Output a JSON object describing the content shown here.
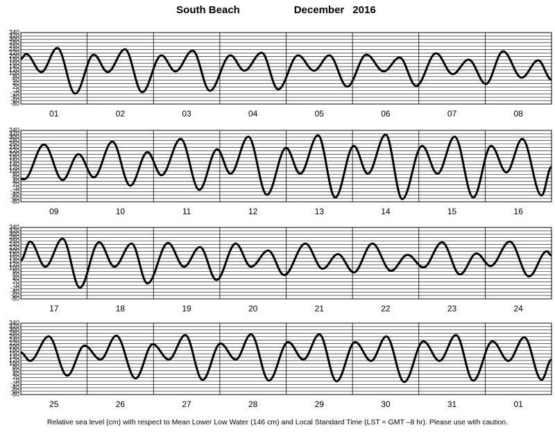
{
  "header": {
    "location": "South Beach",
    "month": "December",
    "year": "2016"
  },
  "chart_data": [
    {
      "type": "line",
      "categories": [
        "01",
        "02",
        "03",
        "04",
        "05",
        "06",
        "07",
        "08"
      ],
      "x": [
        0,
        0.08,
        0.31,
        0.55,
        0.82,
        1.1,
        1.31,
        1.57,
        1.83,
        2.12,
        2.33,
        2.59,
        2.85,
        3.16,
        3.37,
        3.63,
        3.88,
        4.18,
        4.42,
        4.65,
        4.92,
        5.21,
        5.47,
        5.71,
        5.96,
        6.26,
        6.51,
        6.75,
        7.01,
        7.27,
        7.55,
        7.8,
        8
      ],
      "values": [
        185,
        214,
        108,
        250,
        -19,
        210,
        108,
        242,
        -11,
        206,
        112,
        234,
        -2,
        206,
        116,
        222,
        6,
        206,
        116,
        206,
        22,
        210,
        112,
        193,
        26,
        218,
        96,
        181,
        38,
        230,
        75,
        177,
        63
      ],
      "xlim": [
        0,
        8
      ],
      "ylim": [
        -80,
        340
      ],
      "yticks": [
        340,
        320,
        300,
        280,
        260,
        240,
        220,
        200,
        180,
        160,
        140,
        120,
        100,
        80,
        60,
        40,
        20,
        0,
        -20,
        -40,
        -60,
        -80
      ],
      "color": "#000000",
      "grid": true
    },
    {
      "type": "line",
      "categories": [
        "09",
        "10",
        "11",
        "12",
        "13",
        "14",
        "15",
        "16"
      ],
      "x": [
        0,
        0.05,
        0.35,
        0.63,
        0.87,
        1.1,
        1.38,
        1.65,
        1.91,
        2.12,
        2.41,
        2.69,
        2.96,
        3.16,
        3.43,
        3.71,
        4.0,
        4.21,
        4.48,
        4.74,
        5.02,
        5.23,
        5.5,
        5.75,
        6.05,
        6.28,
        6.54,
        6.82,
        7.09,
        7.32,
        7.56,
        7.85,
        8
      ],
      "values": [
        56,
        52,
        257,
        48,
        200,
        64,
        274,
        15,
        212,
        76,
        290,
        -10,
        229,
        85,
        303,
        -39,
        237,
        85,
        311,
        -55,
        249,
        85,
        315,
        -64,
        249,
        85,
        303,
        -55,
        249,
        93,
        290,
        -43,
        126
      ],
      "xlim": [
        0,
        8
      ],
      "ylim": [
        -80,
        340
      ],
      "yticks": [
        340,
        320,
        300,
        280,
        260,
        240,
        220,
        200,
        180,
        160,
        140,
        120,
        100,
        80,
        60,
        40,
        20,
        0,
        -20,
        -40,
        -60,
        -80
      ],
      "color": "#000000",
      "grid": true
    },
    {
      "type": "line",
      "categories": [
        "17",
        "18",
        "19",
        "20",
        "21",
        "22",
        "23",
        "24"
      ],
      "x": [
        0,
        0.14,
        0.37,
        0.63,
        0.89,
        1.18,
        1.41,
        1.67,
        1.91,
        2.22,
        2.46,
        2.7,
        2.95,
        3.24,
        3.47,
        3.73,
        3.97,
        4.29,
        4.55,
        4.78,
        5.02,
        5.3,
        5.58,
        5.83,
        6.07,
        6.35,
        6.62,
        6.87,
        7.08,
        7.37,
        7.66,
        7.93,
        8
      ],
      "values": [
        146,
        257,
        109,
        274,
        -14,
        253,
        109,
        245,
        11,
        249,
        109,
        225,
        31,
        245,
        109,
        204,
        60,
        245,
        97,
        183,
        76,
        245,
        85,
        179,
        105,
        253,
        64,
        187,
        113,
        257,
        52,
        200,
        175
      ],
      "xlim": [
        0,
        8
      ],
      "ylim": [
        -80,
        340
      ],
      "yticks": [
        340,
        320,
        300,
        280,
        260,
        240,
        220,
        200,
        180,
        160,
        140,
        120,
        100,
        80,
        60,
        40,
        20,
        0,
        -20,
        -40,
        -60,
        -80
      ],
      "color": "#000000",
      "grid": true
    },
    {
      "type": "line",
      "categories": [
        "25",
        "26",
        "27",
        "28",
        "29",
        "30",
        "31",
        "01"
      ],
      "x": [
        0,
        0.14,
        0.42,
        0.7,
        0.96,
        1.2,
        1.44,
        1.73,
        1.99,
        2.23,
        2.48,
        2.74,
        3.01,
        3.24,
        3.47,
        3.74,
        4.03,
        4.26,
        4.5,
        4.76,
        5.04,
        5.28,
        5.51,
        5.78,
        6.07,
        6.31,
        6.56,
        6.82,
        7.11,
        7.35,
        7.59,
        7.85,
        8
      ],
      "values": [
        167,
        118,
        262,
        31,
        208,
        126,
        266,
        15,
        216,
        126,
        270,
        6,
        220,
        126,
        274,
        2,
        229,
        126,
        274,
        -2,
        229,
        118,
        262,
        -6,
        233,
        118,
        270,
        2,
        233,
        118,
        257,
        6,
        126
      ],
      "xlim": [
        0,
        8
      ],
      "ylim": [
        -80,
        340
      ],
      "yticks": [
        340,
        320,
        300,
        280,
        260,
        240,
        220,
        200,
        180,
        160,
        140,
        120,
        100,
        80,
        60,
        40,
        20,
        0,
        -20,
        -40,
        -60,
        -80
      ],
      "color": "#000000",
      "grid": true
    }
  ],
  "footnote": "Relative sea level (cm) with respect to Mean Lower Low Water (146 cm) and Local Standard Time (LST = GMT –8 hr). Please use with caution."
}
